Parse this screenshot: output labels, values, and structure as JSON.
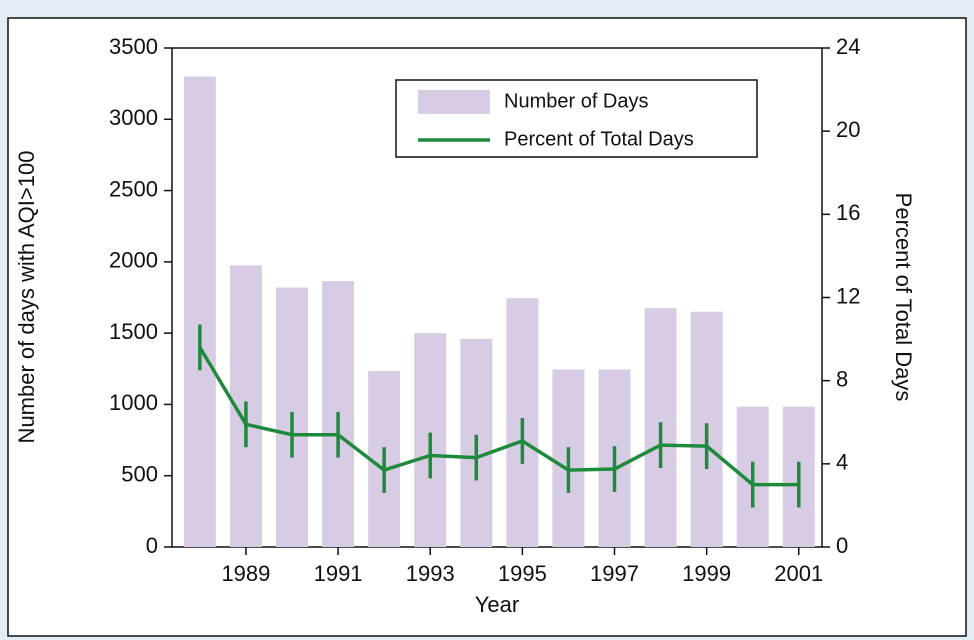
{
  "chart_data": {
    "type": "bar",
    "categories": [
      null,
      "1989",
      null,
      "1991",
      null,
      "1993",
      null,
      "1995",
      null,
      "1997",
      null,
      "1999",
      null,
      "2001"
    ],
    "series": [
      {
        "name": "Number of Days",
        "type": "bar",
        "axis": "y",
        "color": "#d8cce4",
        "values": [
          3300,
          1975,
          1820,
          1865,
          1235,
          1500,
          1460,
          1745,
          1245,
          1245,
          1675,
          1650,
          985,
          985
        ]
      },
      {
        "name": "Percent of Total Days",
        "type": "line",
        "axis": "y2",
        "color": "#1d8a3c",
        "values": [
          9.6,
          5.9,
          5.4,
          5.4,
          3.7,
          4.4,
          4.3,
          5.1,
          3.7,
          3.75,
          4.9,
          4.85,
          3.0,
          3.0
        ],
        "errors": [
          1.1,
          1.1,
          1.1,
          1.1,
          1.1,
          1.1,
          1.1,
          1.1,
          1.1,
          1.1,
          1.1,
          1.1,
          1.1,
          1.1
        ]
      }
    ],
    "xlabel": "Year",
    "ylabel": "Number of days with AQI>100",
    "y2label": "Percent of Total Days",
    "ylim": [
      0,
      3500
    ],
    "yticks": [
      0,
      500,
      1000,
      1500,
      2000,
      2500,
      3000,
      3500
    ],
    "y2lim": [
      0,
      24
    ],
    "y2ticks": [
      0,
      4,
      8,
      12,
      16,
      20,
      24
    ],
    "legend": "top-right"
  }
}
